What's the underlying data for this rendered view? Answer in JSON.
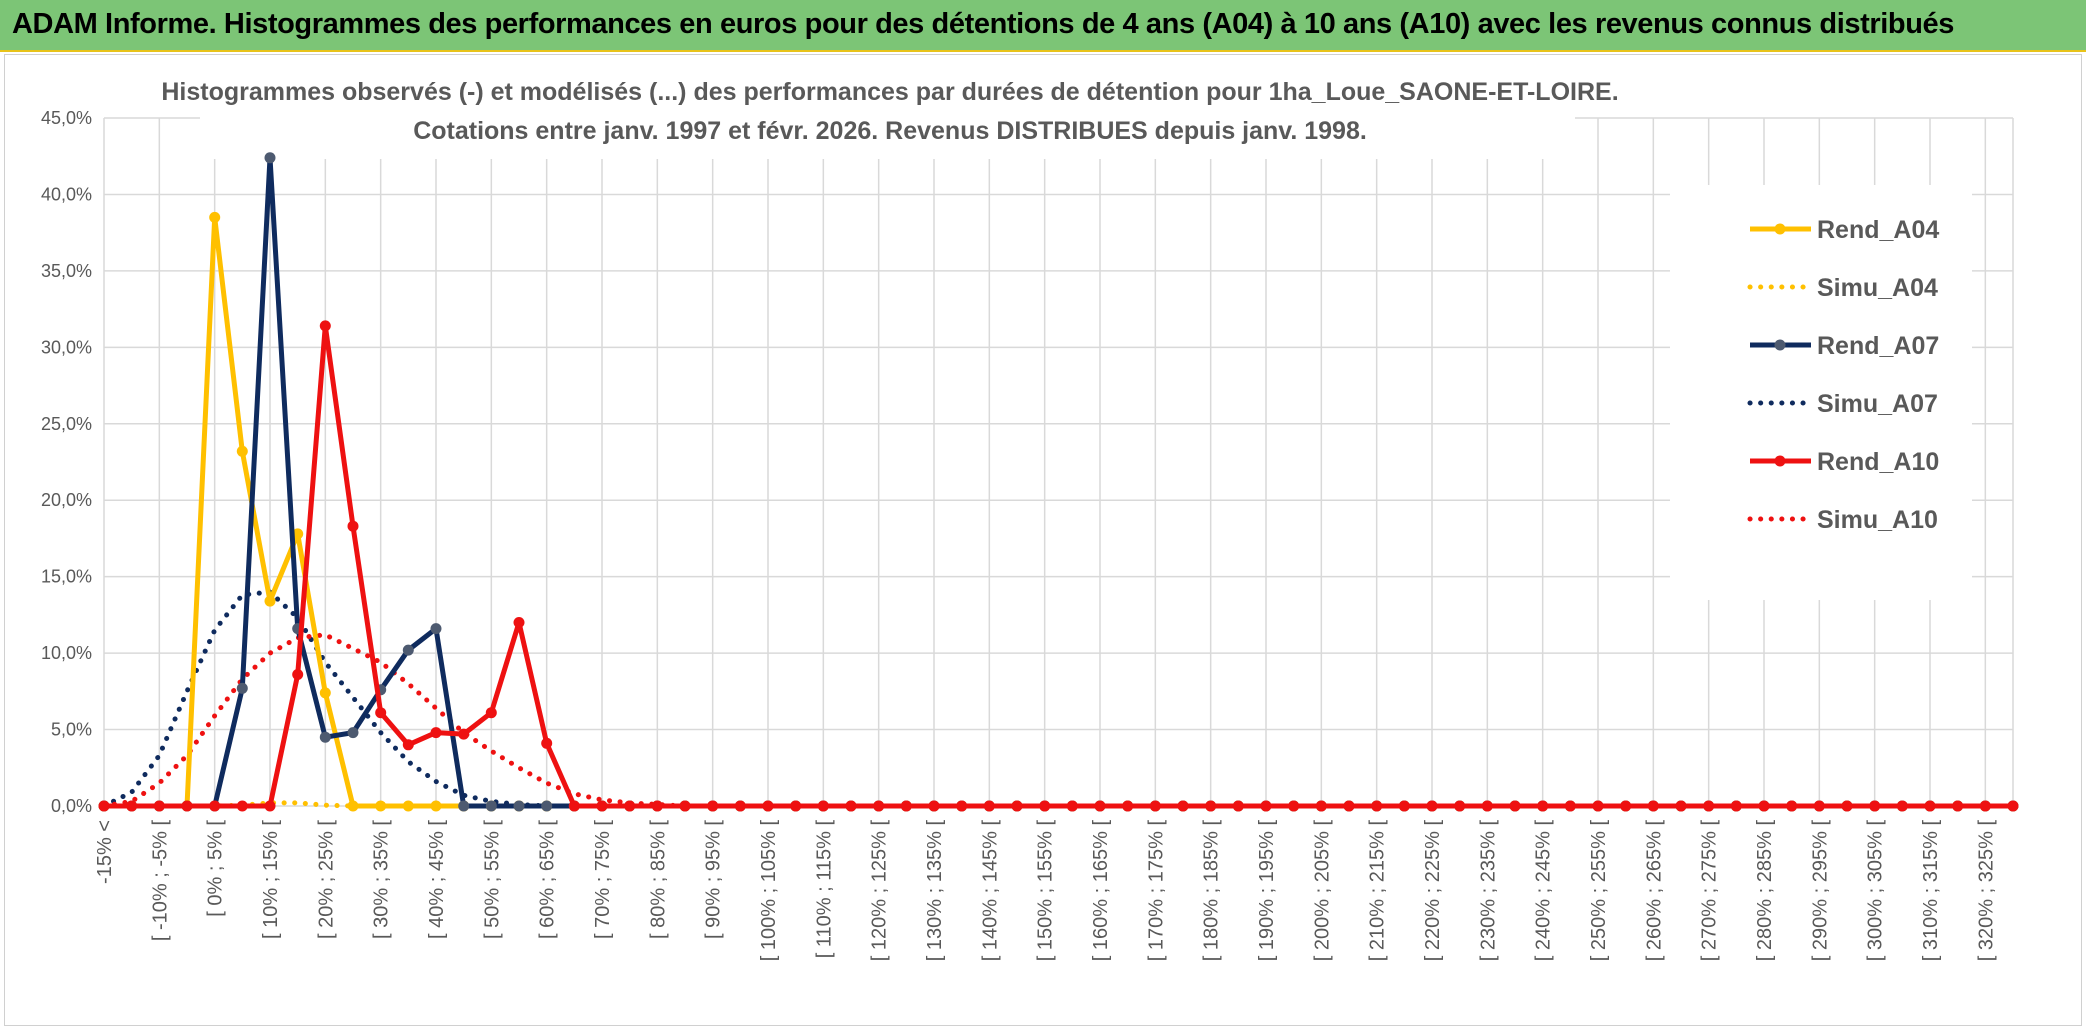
{
  "banner": {
    "title": "ADAM Informe. Histogrammes des performances en euros pour des détentions de 4 ans (A04) à 10 ans (A10) avec les revenus connus distribués"
  },
  "chart_data": {
    "type": "line",
    "title_lines": [
      "Histogrammes observés (-) et modélisés (...) des performances par durées de détention pour 1ha_Loue_SAONE-ET-LOIRE.",
      "Cotations entre janv. 1997 et févr. 2026. Revenus DISTRIBUES depuis janv. 1998."
    ],
    "xlabel": "",
    "ylabel": "",
    "ylim": [
      0,
      45
    ],
    "y_ticks": [
      "0,0%",
      "5,0%",
      "10,0%",
      "15,0%",
      "20,0%",
      "25,0%",
      "30,0%",
      "35,0%",
      "40,0%",
      "45,0%"
    ],
    "grid": true,
    "legend_position": "right",
    "categories": [
      "-15% <",
      "[ -10% ; -5% [",
      "[ 0% ; 5% [",
      "[ 10% ; 15% [",
      "[ 20% ; 25% [",
      "[ 30% ; 35% [",
      "[ 40% ; 45% [",
      "[ 50% ; 55% [",
      "[ 60% ; 65% [",
      "[ 70% ; 75% [",
      "[ 80% ; 85% [",
      "[ 90% ; 95% [",
      "[ 100% ; 105% [",
      "[ 110% ; 115% [",
      "[ 120% ; 125% [",
      "[ 130% ; 135% [",
      "[ 140% ; 145% [",
      "[ 150% ; 155% [",
      "[ 160% ; 165% [",
      "[ 170% ; 175% [",
      "[ 180% ; 185% [",
      "[ 190% ; 195% [",
      "[ 200% ; 205% [",
      "[ 210% ; 215% [",
      "[ 220% ; 225% [",
      "[ 230% ; 235% [",
      "[ 240% ; 245% [",
      "[ 250% ; 255% [",
      "[ 260% ; 265% [",
      "[ 270% ; 275% [",
      "[ 280% ; 285% [",
      "[ 290% ; 295% [",
      "[ 300% ; 305% [",
      "[ 310% ; 315% [",
      "[ 320% ; 325% ["
    ],
    "x": [
      -15,
      -10,
      -5,
      0,
      5,
      10,
      15,
      20,
      25,
      30,
      35,
      40,
      45,
      50,
      55,
      60,
      65,
      70,
      75,
      80,
      85,
      90,
      95,
      100,
      105,
      110,
      115,
      120,
      125,
      130,
      135,
      140,
      145,
      150,
      155,
      160,
      165,
      170,
      175,
      180,
      185,
      190,
      195,
      200,
      205,
      210,
      215,
      220,
      225,
      230,
      235,
      240,
      245,
      250,
      255,
      260,
      265,
      270,
      275,
      280,
      285,
      290,
      295,
      300,
      305,
      310,
      315,
      320,
      325,
      330
    ],
    "series": [
      {
        "name": "Rend_A04",
        "style": "solid",
        "color": "#ffc000",
        "marker": true,
        "values": [
          0,
          0,
          0,
          0,
          38.5,
          23.2,
          13.4,
          17.8,
          7.4,
          0,
          0,
          0,
          0,
          0,
          0,
          0,
          0,
          0,
          0,
          0,
          0,
          0,
          0,
          0,
          0,
          0,
          0,
          0,
          0,
          0,
          0,
          0,
          0,
          0,
          0,
          0,
          0,
          0,
          0,
          0,
          0,
          0,
          0,
          0,
          0,
          0,
          0,
          0,
          0,
          0,
          0,
          0,
          0,
          0,
          0,
          0,
          0,
          0,
          0,
          0,
          0,
          0,
          0,
          0,
          0,
          0,
          0,
          0,
          0,
          0
        ]
      },
      {
        "name": "Simu_A04",
        "style": "dotted",
        "color": "#ffc000",
        "marker": false,
        "values": [
          0,
          0,
          0,
          0,
          0,
          0.05,
          0.2,
          0.2,
          0.05,
          0,
          0,
          0,
          0,
          0,
          0,
          0,
          0,
          0,
          0,
          0,
          0,
          0,
          0,
          0,
          0,
          0,
          0,
          0,
          0,
          0,
          0,
          0,
          0,
          0,
          0,
          0,
          0,
          0,
          0,
          0,
          0,
          0,
          0,
          0,
          0,
          0,
          0,
          0,
          0,
          0,
          0,
          0,
          0,
          0,
          0,
          0,
          0,
          0,
          0,
          0,
          0,
          0,
          0,
          0,
          0,
          0,
          0,
          0,
          0,
          0
        ]
      },
      {
        "name": "Rend_A07",
        "style": "solid",
        "color": "#0f2b5e",
        "marker": true,
        "values": [
          0,
          0,
          0,
          0,
          0,
          7.7,
          42.4,
          11.6,
          4.5,
          4.8,
          7.6,
          10.2,
          11.6,
          0,
          0,
          0,
          0,
          0,
          0,
          0,
          0,
          0,
          0,
          0,
          0,
          0,
          0,
          0,
          0,
          0,
          0,
          0,
          0,
          0,
          0,
          0,
          0,
          0,
          0,
          0,
          0,
          0,
          0,
          0,
          0,
          0,
          0,
          0,
          0,
          0,
          0,
          0,
          0,
          0,
          0,
          0,
          0,
          0,
          0,
          0,
          0,
          0,
          0,
          0,
          0,
          0,
          0,
          0,
          0,
          0
        ]
      },
      {
        "name": "Simu_A07",
        "style": "dotted",
        "color": "#0f2b5e",
        "marker": false,
        "values": [
          0,
          0.9,
          3.3,
          7.5,
          11.5,
          13.8,
          14,
          12.3,
          9.4,
          7.1,
          4.8,
          2.9,
          1.6,
          0.7,
          0.3,
          0.1,
          0,
          0,
          0,
          0,
          0,
          0,
          0,
          0,
          0,
          0,
          0,
          0,
          0,
          0,
          0,
          0,
          0,
          0,
          0,
          0,
          0,
          0,
          0,
          0,
          0,
          0,
          0,
          0,
          0,
          0,
          0,
          0,
          0,
          0,
          0,
          0,
          0,
          0,
          0,
          0,
          0,
          0,
          0,
          0,
          0,
          0,
          0,
          0,
          0,
          0,
          0,
          0,
          0,
          0
        ]
      },
      {
        "name": "Rend_A10",
        "style": "solid",
        "color": "#ee1111",
        "marker": true,
        "values": [
          0,
          0,
          0,
          0,
          0,
          0,
          0,
          8.6,
          31.4,
          18.3,
          6.1,
          4,
          4.8,
          4.7,
          6.1,
          12,
          4.1,
          0,
          0,
          0,
          0,
          0,
          0,
          0,
          0,
          0,
          0,
          0,
          0,
          0,
          0,
          0,
          0,
          0,
          0,
          0,
          0,
          0,
          0,
          0,
          0,
          0,
          0,
          0,
          0,
          0,
          0,
          0,
          0,
          0,
          0,
          0,
          0,
          0,
          0,
          0,
          0,
          0,
          0,
          0,
          0,
          0,
          0,
          0,
          0,
          0,
          0,
          0,
          0,
          0
        ]
      },
      {
        "name": "Simu_A10",
        "style": "dotted",
        "color": "#ee1111",
        "marker": false,
        "values": [
          0,
          0.3,
          1.5,
          3.3,
          5.9,
          8.3,
          10,
          11,
          11.2,
          10.3,
          9.4,
          8,
          6.4,
          4.8,
          3.6,
          2.5,
          1.5,
          0.8,
          0.4,
          0.2,
          0.1,
          0,
          0,
          0,
          0,
          0,
          0,
          0,
          0,
          0,
          0,
          0,
          0,
          0,
          0,
          0,
          0,
          0,
          0,
          0,
          0,
          0,
          0,
          0,
          0,
          0,
          0,
          0,
          0,
          0,
          0,
          0,
          0,
          0,
          0,
          0,
          0,
          0,
          0,
          0,
          0,
          0,
          0,
          0,
          0,
          0,
          0,
          0,
          0,
          0
        ]
      }
    ]
  }
}
